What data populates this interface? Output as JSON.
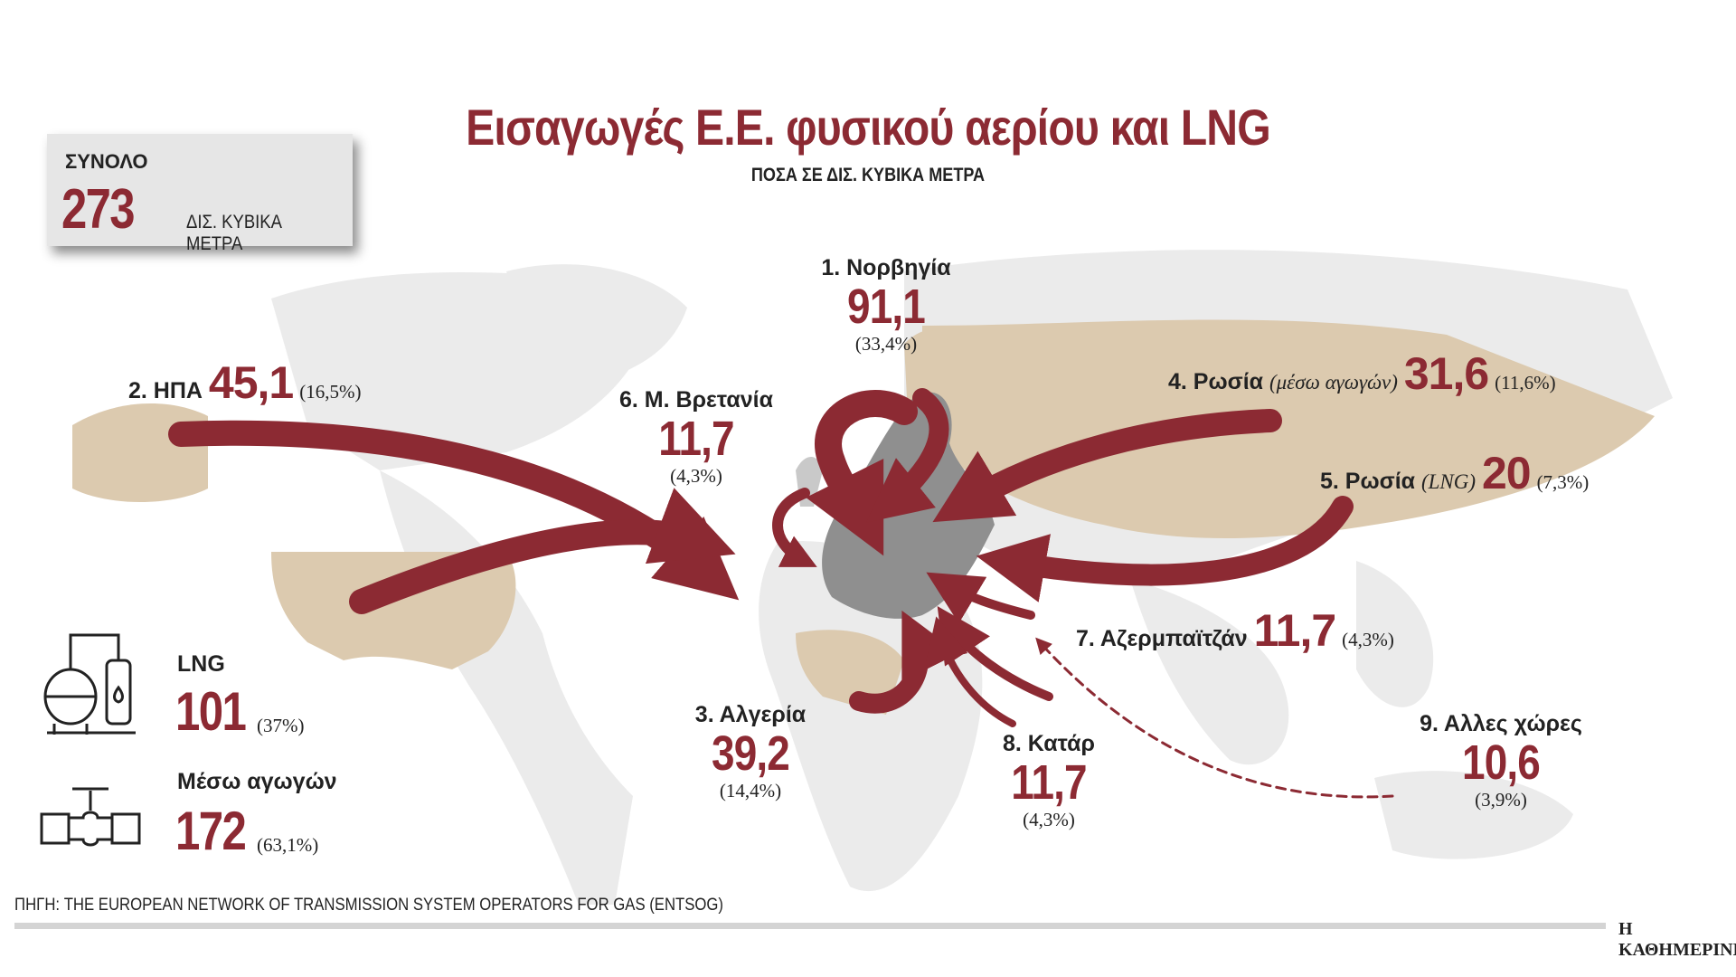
{
  "title": "Εισαγωγές Ε.Ε. φυσικού αερίου και LNG",
  "subtitle": "ΠΟΣΑ ΣΕ ΔΙΣ. ΚΥΒΙΚΑ ΜΕΤΡΑ",
  "total": {
    "label": "ΣΥΝΟΛΟ",
    "value": "273",
    "unit": "ΔΙΣ. ΚΥΒΙΚΑ ΜΕΤΡΑ"
  },
  "sources": {
    "norway": {
      "name": "1. Νορβηγία",
      "value": "91,1",
      "pct": "(33,4%)"
    },
    "usa": {
      "name": "2. ΗΠΑ",
      "value": "45,1",
      "pct": "(16,5%)"
    },
    "algeria": {
      "name": "3. Αλγερία",
      "value": "39,2",
      "pct": "(14,4%)"
    },
    "russia_pipe": {
      "name": "4. Ρωσία",
      "note": "(μέσω αγωγών)",
      "value": "31,6",
      "pct": "(11,6%)"
    },
    "russia_lng": {
      "name": "5. Ρωσία",
      "note": "(LNG)",
      "value": "20",
      "pct": "(7,3%)"
    },
    "uk": {
      "name": "6. Μ. Βρετανία",
      "value": "11,7",
      "pct": "(4,3%)"
    },
    "azerbaijan": {
      "name": "7. Αζερμπαϊτζάν",
      "value": "11,7",
      "pct": "(4,3%)"
    },
    "qatar": {
      "name": "8. Κατάρ",
      "value": "11,7",
      "pct": "(4,3%)"
    },
    "others": {
      "name": "9. Αλλες χώρες",
      "value": "10,6",
      "pct": "(3,9%)"
    }
  },
  "legend": {
    "lng": {
      "label": "LNG",
      "value": "101",
      "pct": "(37%)"
    },
    "pipeline": {
      "label": "Μέσω αγωγών",
      "value": "172",
      "pct": "(63,1%)"
    }
  },
  "source_note": "ΠΗΓΗ: THE EUROPEAN NETWORK OF TRANSMISSION SYSTEM OPERATORS FOR GAS (ENTSOG)",
  "brand": "Η ΚΑΘΗΜΕΡΙΝΗ",
  "colors": {
    "accent": "#8c2a33",
    "land": "#e9e9e9",
    "highlight_land": "#d9c6ab",
    "eu": "#8f8f8f"
  }
}
